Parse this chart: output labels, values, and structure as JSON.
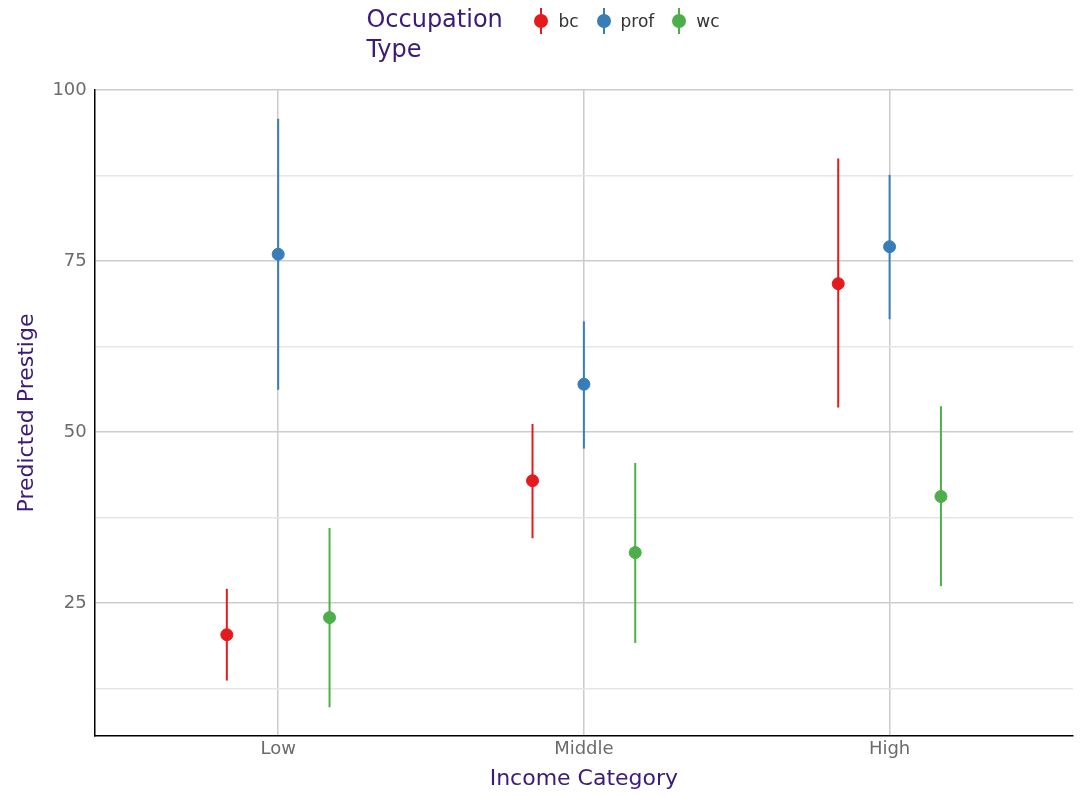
{
  "chart_data": {
    "type": "scatter",
    "xlabel": "Income Category",
    "ylabel": "Predicted Prestige",
    "legend_title": "Occupation Type",
    "categories": [
      "Low",
      "Middle",
      "High"
    ],
    "series": [
      {
        "name": "bc",
        "color": "#e41a1c",
        "values": [
          20.4,
          42.9,
          71.7
        ],
        "errors": [
          [
            13.7,
            27.1
          ],
          [
            34.5,
            51.2
          ],
          [
            53.6,
            90.0
          ]
        ]
      },
      {
        "name": "prof",
        "color": "#377eb8",
        "values": [
          76.0,
          57.0,
          77.1
        ],
        "errors": [
          [
            56.2,
            95.8
          ],
          [
            47.6,
            66.2
          ],
          [
            66.5,
            87.6
          ]
        ]
      },
      {
        "name": "wc",
        "color": "#4daf4a",
        "values": [
          22.9,
          32.4,
          40.6
        ],
        "errors": [
          [
            9.8,
            36.0
          ],
          [
            19.2,
            45.5
          ],
          [
            27.5,
            53.8
          ]
        ]
      }
    ],
    "ylim": [
      5.6,
      100
    ],
    "yticks": [
      {
        "value": 12.5,
        "label": null
      },
      25,
      {
        "value": 37.5,
        "label": null
      },
      50,
      {
        "value": 62.5,
        "label": null
      },
      75,
      {
        "value": 87.5,
        "label": null
      },
      100
    ],
    "grid": true,
    "legend": "top",
    "marker": "circle"
  }
}
